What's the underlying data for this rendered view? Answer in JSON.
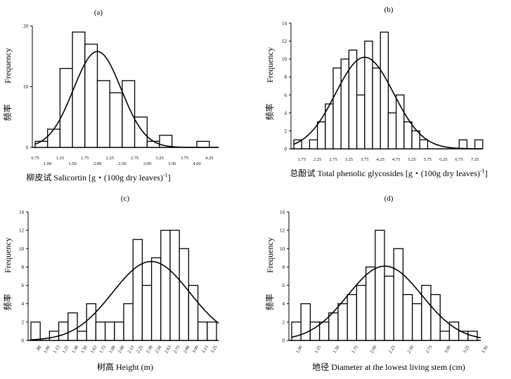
{
  "chart_data": [
    {
      "type": "histogram",
      "panel_label": "(a)",
      "ylabel_cn": "频率",
      "ylabel_en": "Frequency",
      "xlabel_cn": "柳皮试",
      "xlabel_en": "Salicortin [g・(100g dry leaves)",
      "xlabel_sup": "-1",
      "xlabel_end": "]",
      "ylim": [
        0,
        20
      ],
      "yticks": [
        0,
        10,
        20
      ],
      "x_start": 0.75,
      "bin_width": 0.25,
      "counts": [
        1,
        3,
        13,
        19,
        17,
        11,
        9,
        11,
        5,
        1,
        2,
        0,
        0,
        1
      ],
      "xticks_top": [
        "0.75",
        "1.25",
        "1.75",
        "2.25",
        "2.75",
        "3.25",
        "3.75",
        "4.25"
      ],
      "xticks_bottom": [
        "1.00",
        "1.50",
        "2.00",
        "2.50",
        "3.00",
        "3.50",
        "4.00"
      ],
      "normal_curve": {
        "mean": 2.0,
        "sd": 0.48,
        "peak": 15.8
      }
    },
    {
      "type": "histogram",
      "panel_label": "(b)",
      "ylabel_cn": "频率",
      "ylabel_en": "Frequency",
      "xlabel_cn": "总酚试",
      "xlabel_en": "Total phenolic glycosides [g・(100g dry leaves)",
      "xlabel_sup": "-1",
      "xlabel_end": "]",
      "ylim": [
        0,
        14
      ],
      "yticks": [
        0,
        2,
        4,
        6,
        8,
        10,
        12,
        14
      ],
      "x_start": 1.5,
      "bin_width": 0.25,
      "counts": [
        1,
        0,
        1,
        3,
        5,
        9,
        10,
        11,
        6,
        12,
        9,
        13,
        4,
        6,
        3,
        2,
        1,
        0,
        0,
        0,
        0,
        1,
        0,
        1
      ],
      "xticks": [
        "1.75",
        "2.25",
        "2.75",
        "3.25",
        "3.75",
        "4.25",
        "4.75",
        "5.25",
        "5.75",
        "6.25",
        "6.75",
        "7.25"
      ],
      "normal_curve": {
        "mean": 3.75,
        "sd": 0.92,
        "peak": 10.2
      }
    },
    {
      "type": "histogram",
      "panel_label": "(c)",
      "ylabel_cn": "频率",
      "ylabel_en": "Frequency",
      "xlabel_cn": "树高",
      "xlabel_en": "Height (m)",
      "ylim": [
        0,
        14
      ],
      "yticks": [
        0,
        2,
        4,
        6,
        8,
        10,
        12,
        14
      ],
      "x_start": 0.76,
      "bin_width": 0.125,
      "counts": [
        2,
        0,
        1,
        2,
        3,
        1,
        4,
        2,
        2,
        2,
        4,
        11,
        6,
        9,
        12,
        12,
        10,
        6,
        2,
        2
      ],
      "xticks": [
        ".88",
        "1.00",
        "1.13",
        "1.25",
        "1.38",
        "1.50",
        "1.63",
        "1.75",
        "1.88",
        "2.00",
        "2.13",
        "2.25",
        "2.38",
        "2.50",
        "2.63",
        "2.75",
        "2.88",
        "3.00",
        "3.13",
        "3.25"
      ],
      "normal_curve": {
        "mean": 2.38,
        "sd": 0.52,
        "peak": 8.6
      }
    },
    {
      "type": "histogram",
      "panel_label": "(d)",
      "ylabel_cn": "频率",
      "ylabel_en": "Frequency",
      "xlabel_cn": "地径",
      "xlabel_en": "Diameter at the lowest living stem (cm)",
      "ylim": [
        0,
        14
      ],
      "yticks": [
        0,
        2,
        4,
        6,
        8,
        10,
        12,
        14
      ],
      "x_start": 0.875,
      "bin_width": 0.125,
      "counts": [
        2,
        4,
        2,
        2,
        3,
        4,
        5,
        6,
        8,
        12,
        7,
        10,
        5,
        4,
        6,
        5,
        1,
        2,
        1,
        1
      ],
      "xticks": [
        "1.00",
        "1.25",
        "1.50",
        "1.75",
        "2.00",
        "2.25",
        "2.50",
        "2.75",
        "3.00",
        "3.25",
        "3.50"
      ],
      "normal_curve": {
        "mean": 2.13,
        "sd": 0.5,
        "peak": 8.1
      }
    }
  ]
}
